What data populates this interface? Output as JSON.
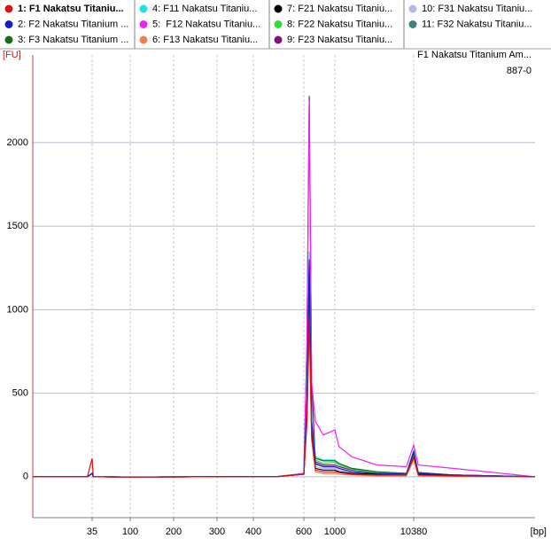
{
  "chart_data": {
    "type": "line",
    "title": "F1 Nakatsu Titanium Am...",
    "subtitle": "887-0",
    "y_label": "[FU]",
    "x_label": "[bp]",
    "x": [
      10,
      33,
      35,
      37,
      100,
      500,
      600,
      640,
      670,
      700,
      750,
      850,
      1000,
      1500,
      3000,
      6000,
      9500,
      10380,
      11500,
      20000,
      40000
    ],
    "xlim": [
      10,
      40000
    ],
    "xticks": [
      35,
      100,
      200,
      300,
      400,
      600,
      1000,
      10380
    ],
    "ylim": [
      -245,
      2525
    ],
    "yticks": [
      0,
      500,
      1000,
      1500,
      2000
    ],
    "grid": true,
    "series": [
      {
        "name": "1: F1 Nakatsu Titaniu...",
        "color": "#e01010",
        "values": [
          0,
          0,
          110,
          0,
          -2,
          2,
          15,
          340,
          960,
          240,
          40,
          30,
          30,
          25,
          15,
          10,
          10,
          120,
          10,
          5,
          0
        ]
      },
      {
        "name": "2: F2 Nakatsu Titanium ...",
        "color": "#1020c8",
        "values": [
          0,
          0,
          20,
          0,
          -2,
          2,
          15,
          450,
          1300,
          330,
          80,
          60,
          60,
          50,
          30,
          20,
          15,
          150,
          20,
          10,
          0
        ]
      },
      {
        "name": "3: F3 Nakatsu Titanium ...",
        "color": "#107010",
        "values": [
          0,
          0,
          20,
          0,
          -2,
          2,
          15,
          390,
          1120,
          280,
          110,
          95,
          95,
          80,
          50,
          30,
          20,
          130,
          25,
          10,
          0
        ]
      },
      {
        "name": "4: F11 Nakatsu Titaniu...",
        "color": "#20e0e8",
        "values": [
          0,
          0,
          20,
          0,
          -2,
          2,
          15,
          470,
          1350,
          340,
          120,
          100,
          100,
          80,
          50,
          30,
          20,
          160,
          25,
          10,
          0
        ]
      },
      {
        "name": "5:  F12 Nakatsu Titaniu...",
        "color": "#f020f0",
        "values": [
          0,
          0,
          20,
          0,
          -2,
          2,
          20,
          790,
          2250,
          560,
          330,
          250,
          280,
          180,
          120,
          70,
          60,
          190,
          70,
          50,
          0
        ]
      },
      {
        "name": "6: F13 Nakatsu Titaniu...",
        "color": "#f08050",
        "values": [
          0,
          0,
          20,
          0,
          -2,
          2,
          15,
          310,
          900,
          220,
          30,
          20,
          20,
          15,
          10,
          5,
          5,
          100,
          5,
          0,
          0
        ]
      },
      {
        "name": "7: F21 Nakatsu Titaniu...",
        "color": "#000000",
        "values": [
          0,
          0,
          20,
          0,
          -2,
          2,
          15,
          350,
          1000,
          250,
          50,
          40,
          40,
          30,
          20,
          15,
          10,
          110,
          15,
          5,
          0
        ]
      },
      {
        "name": "8: F22 Nakatsu Titaniu...",
        "color": "#30e030",
        "values": [
          0,
          0,
          20,
          0,
          -2,
          2,
          15,
          370,
          1050,
          260,
          100,
          80,
          85,
          70,
          45,
          25,
          20,
          120,
          20,
          10,
          0
        ]
      },
      {
        "name": "9: F23 Nakatsu Titaniu...",
        "color": "#801080",
        "values": [
          0,
          0,
          20,
          0,
          -2,
          2,
          20,
          800,
          2280,
          570,
          90,
          70,
          70,
          60,
          40,
          25,
          20,
          140,
          25,
          10,
          0
        ]
      },
      {
        "name": "10: F31 Nakatsu Titaniu...",
        "color": "#b0b8f0",
        "values": [
          0,
          0,
          20,
          0,
          -2,
          2,
          15,
          380,
          1100,
          270,
          60,
          50,
          50,
          40,
          25,
          15,
          10,
          130,
          15,
          5,
          0
        ]
      },
      {
        "name": "11: F32 Nakatsu Titaniu...",
        "color": "#408080",
        "values": [
          0,
          0,
          20,
          0,
          -2,
          2,
          15,
          420,
          1200,
          300,
          75,
          60,
          60,
          50,
          30,
          20,
          15,
          140,
          20,
          10,
          0
        ]
      }
    ]
  }
}
